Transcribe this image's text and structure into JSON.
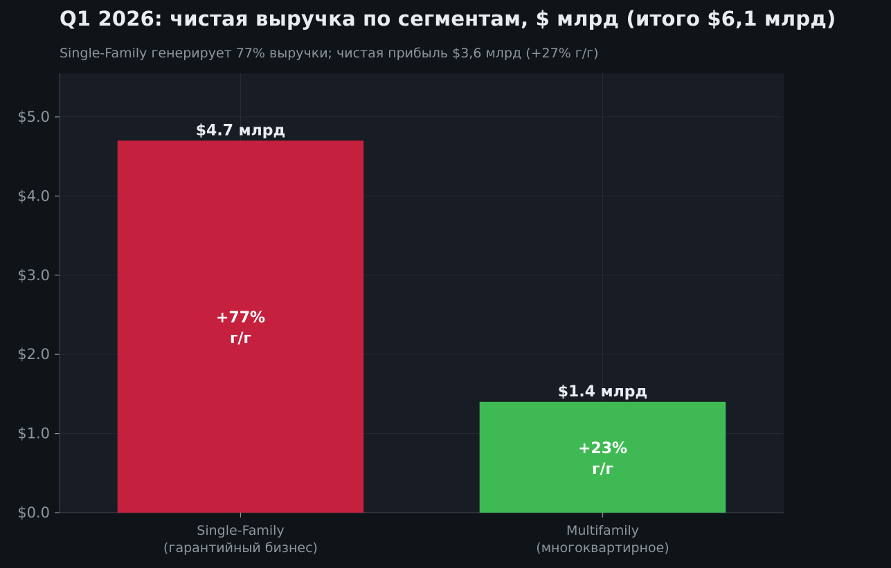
{
  "chart_data": {
    "type": "bar",
    "title": "Q1 2026: чистая выручка по сегментам, $ млрд (итого $6,1 млрд)",
    "subtitle": "Single-Family генерирует 77% выручки; чистая прибыль $3,6 млрд (+27% г/г)",
    "categories": [
      [
        "Single-Family",
        "(гарантийный бизнес)"
      ],
      [
        "Multifamily",
        "(многоквартирное)"
      ]
    ],
    "values": [
      4.7,
      1.4
    ],
    "value_labels": [
      "$4.7 млрд",
      "$1.4 млрд"
    ],
    "growth_labels": [
      [
        "+77%",
        "г/г"
      ],
      [
        "+23%",
        "г/г"
      ]
    ],
    "colors": [
      "#c5203d",
      "#3fb953"
    ],
    "ylim": [
      0,
      5.55
    ],
    "yticks": [
      0,
      1,
      2,
      3,
      4,
      5
    ],
    "ytick_labels": [
      "$0.0",
      "$1.0",
      "$2.0",
      "$3.0",
      "$4.0",
      "$5.0"
    ],
    "xlabel": "",
    "ylabel": "",
    "grid": true,
    "legend": "none"
  }
}
